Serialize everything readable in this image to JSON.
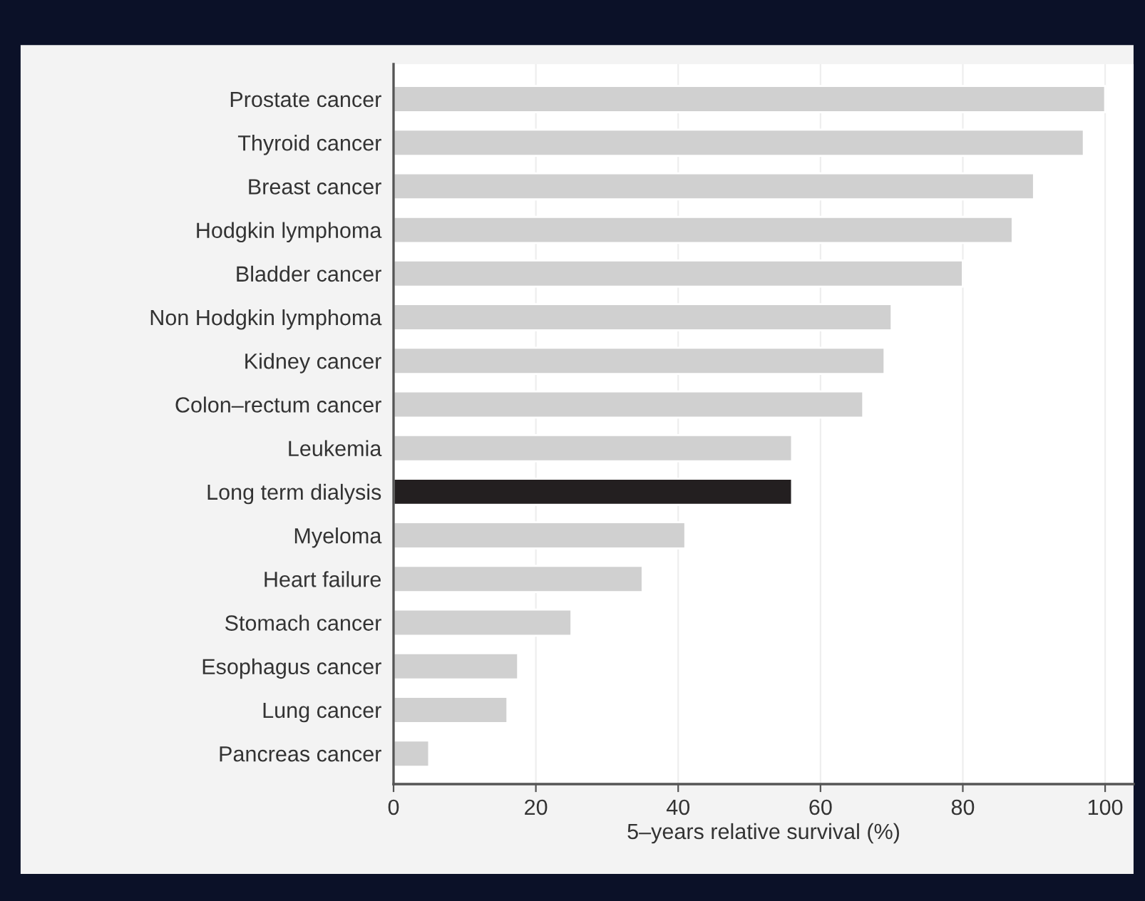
{
  "chart_data": {
    "type": "bar",
    "orientation": "horizontal",
    "xlabel": "5–years relative survival (%)",
    "categories": [
      "Prostate cancer",
      "Thyroid cancer",
      "Breast cancer",
      "Hodgkin lymphoma",
      "Bladder cancer",
      "Non Hodgkin lymphoma",
      "Kidney cancer",
      "Colon–rectum cancer",
      "Leukemia",
      "Long term dialysis",
      "Myeloma",
      "Heart failure",
      "Stomach cancer",
      "Esophagus cancer",
      "Lung cancer",
      "Pancreas cancer"
    ],
    "values": [
      100,
      97,
      90,
      87,
      80,
      70,
      69,
      66,
      56,
      56,
      41,
      35,
      25,
      17.5,
      16,
      5
    ],
    "colors": [
      "#d0d0d0",
      "#d0d0d0",
      "#d0d0d0",
      "#d0d0d0",
      "#d0d0d0",
      "#d0d0d0",
      "#d0d0d0",
      "#d0d0d0",
      "#d0d0d0",
      "#231f20",
      "#d0d0d0",
      "#d0d0d0",
      "#d0d0d0",
      "#d0d0d0",
      "#d0d0d0",
      "#d0d0d0"
    ],
    "xlim": [
      0,
      104
    ],
    "xticks": [
      0,
      20,
      40,
      60,
      80,
      100
    ],
    "grid": "x"
  }
}
